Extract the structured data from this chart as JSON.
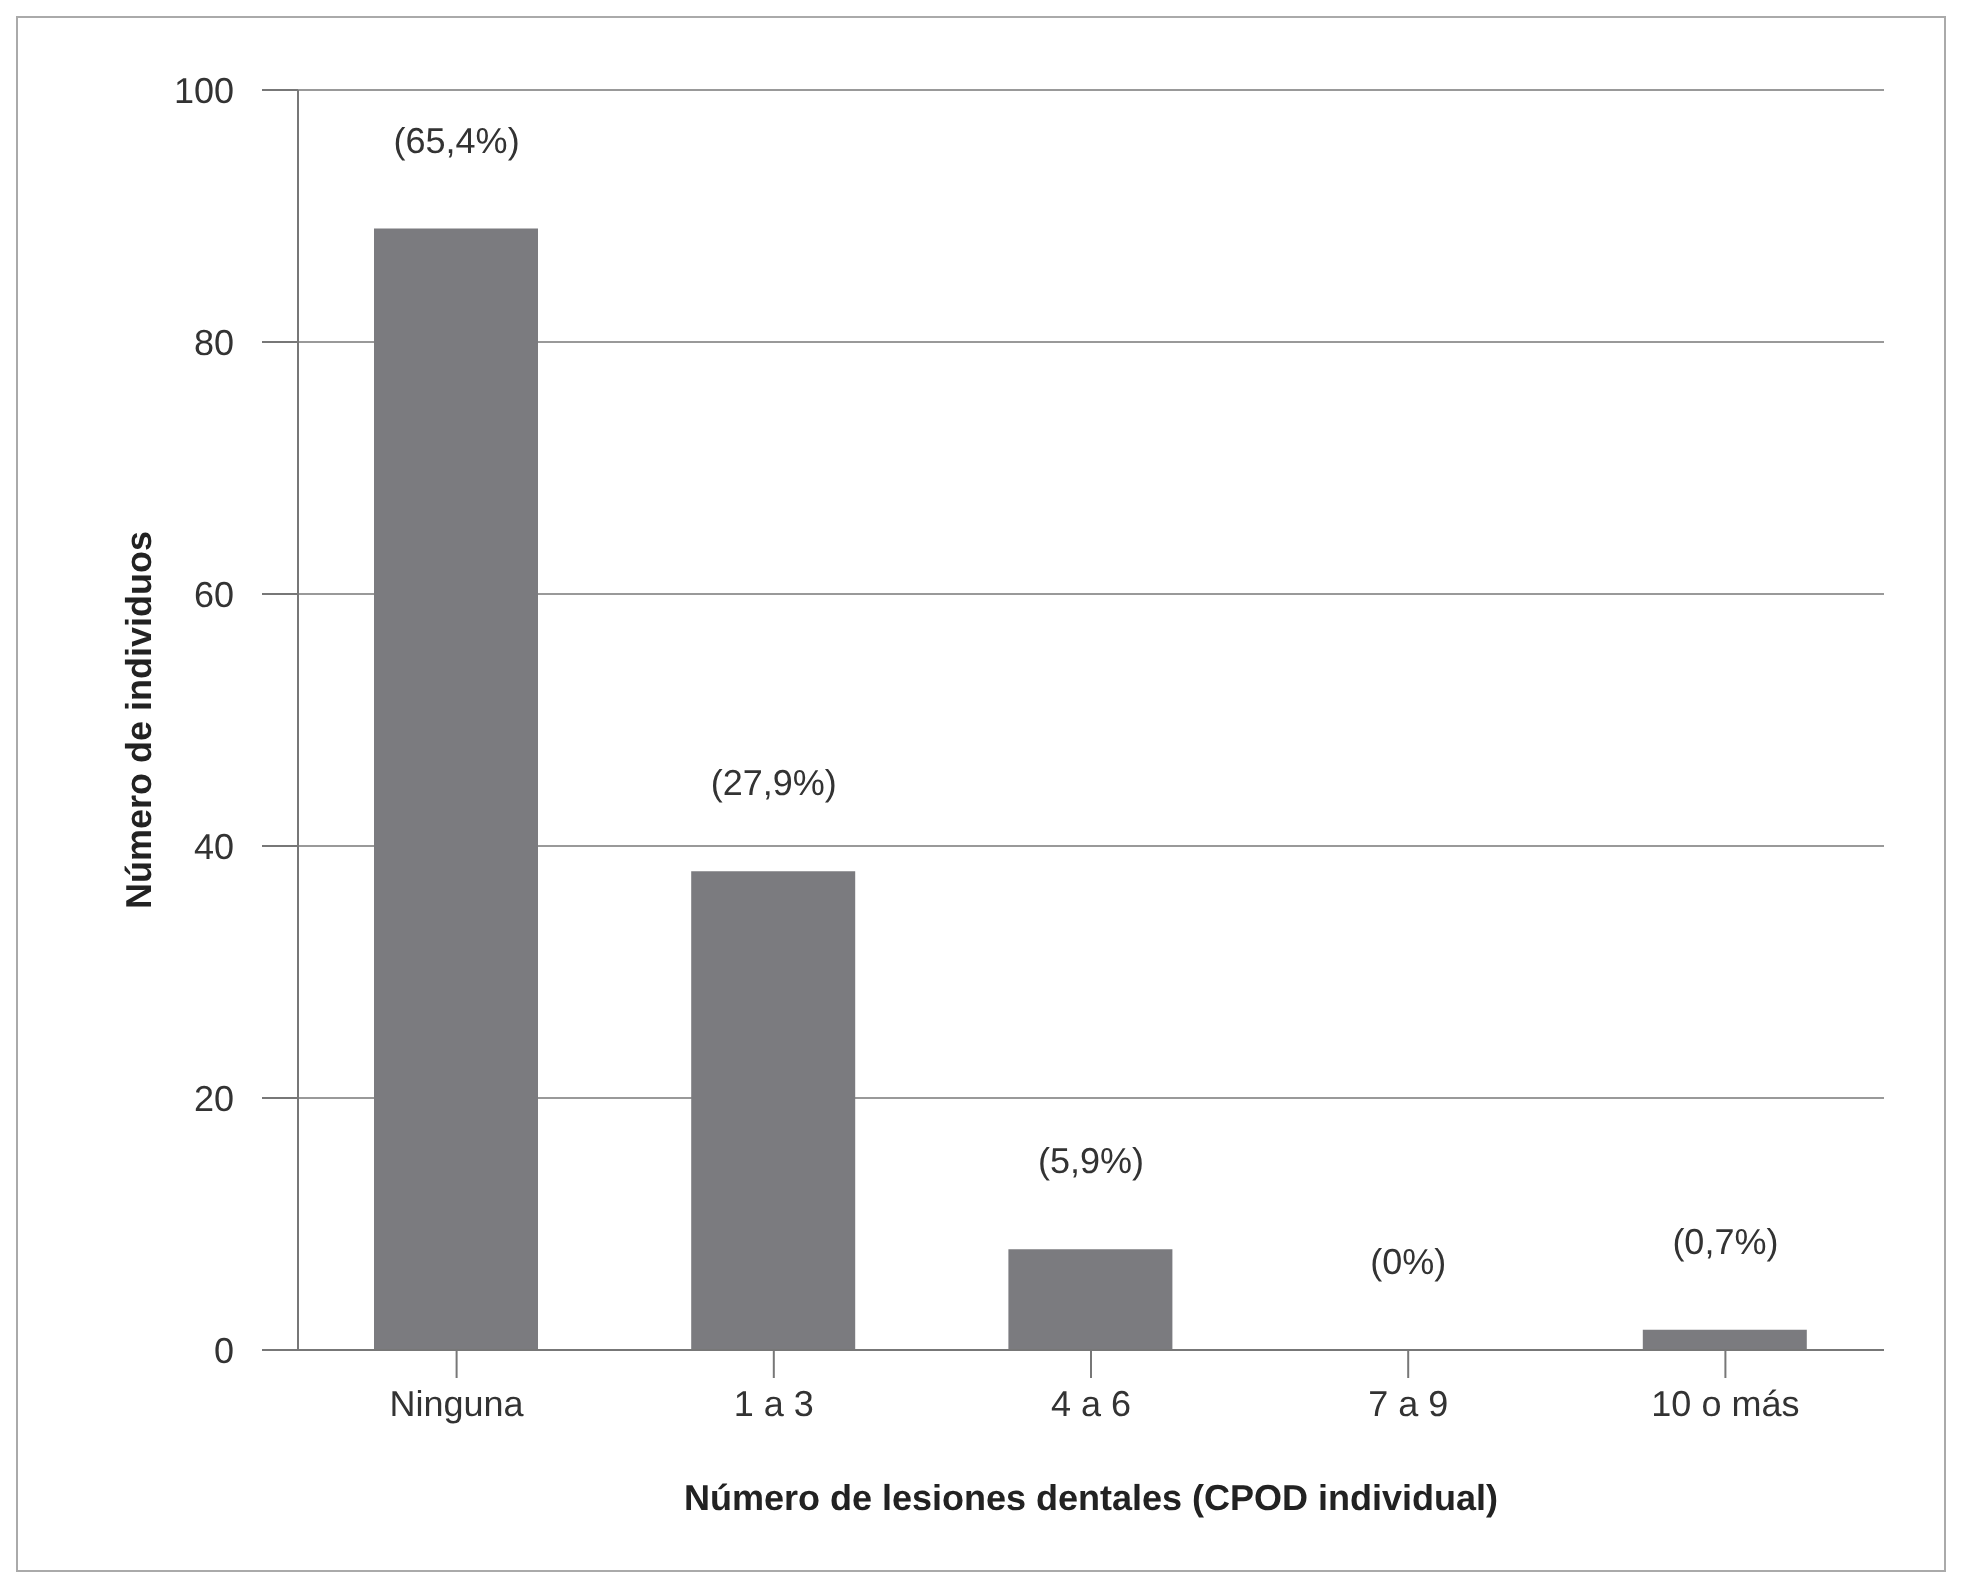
{
  "chart_data": {
    "type": "bar",
    "xlabel": "Número de lesiones dentales (CPOD individual)",
    "ylabel": "Número de individuos",
    "categories": [
      "Ninguna",
      "1 a 3",
      "4 a 6",
      "7 a 9",
      "10 o más"
    ],
    "values": [
      89,
      38,
      8,
      0,
      1.6
    ],
    "annotations": [
      {
        "text": "(65,4%)",
        "x": "Ninguna",
        "y": 89
      },
      {
        "text": "(27,9%)",
        "x": "1 a 3",
        "y": 38
      },
      {
        "text": "(5,9%)",
        "x": "4 a 6",
        "y": 8
      },
      {
        "text": "(0%)",
        "x": "7 a 9",
        "y": 0
      },
      {
        "text": "(0,7%)",
        "x": "10 o más",
        "y": 1.6
      }
    ],
    "color": "#7b7b7f",
    "ylim": [
      0,
      100
    ],
    "yticks": [
      0,
      20,
      40,
      60,
      80,
      100
    ],
    "grid": "y"
  }
}
